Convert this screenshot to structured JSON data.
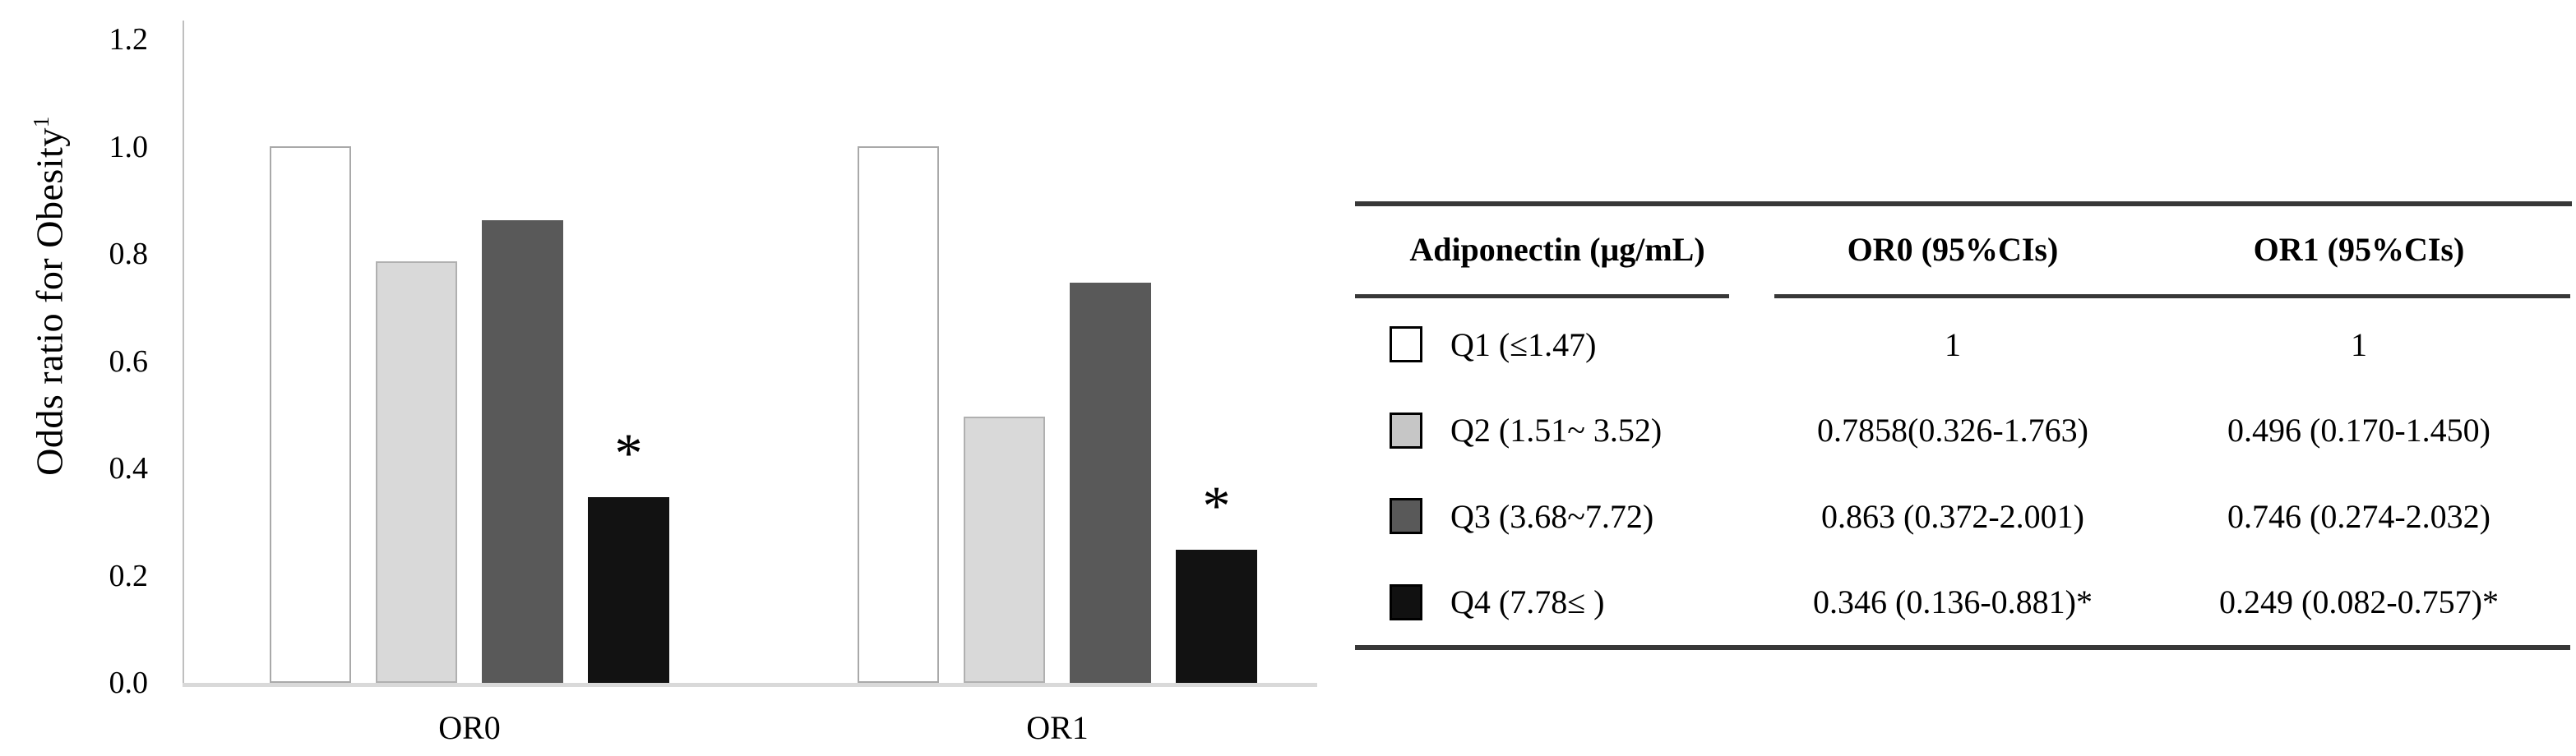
{
  "chart_data": {
    "type": "bar",
    "title": "",
    "categories": [
      "OR0",
      "OR1"
    ],
    "series": [
      {
        "name": "Q1 (≤1.47)",
        "values": [
          1.0,
          1.0
        ],
        "fill": "#ffffff",
        "border": "#a9a9a9",
        "annotation": ""
      },
      {
        "name": "Q2 (1.51~ 3.52)",
        "values": [
          0.7858,
          0.496
        ],
        "fill": "#d9d9d9",
        "border": "#b0b0b0",
        "annotation": ""
      },
      {
        "name": "Q3 (3.68~7.72)",
        "values": [
          0.863,
          0.746
        ],
        "fill": "#595959",
        "border": "#595959",
        "annotation": ""
      },
      {
        "name": "Q4 (7.78≤ )",
        "values": [
          0.346,
          0.249
        ],
        "fill": "#121212",
        "border": "#121212",
        "annotation": "*"
      }
    ],
    "xlabel": "",
    "ylabel": "Odds ratio for Obesity",
    "ylabel_superscript": "1",
    "ylim": [
      0,
      1.2
    ],
    "yticks": [
      "0.0",
      "0.2",
      "0.4",
      "0.6",
      "0.8",
      "1.0",
      "1.2"
    ],
    "grid": false,
    "legend_position": "table-right"
  },
  "table": {
    "col_headers": [
      "Adiponectin (μg/mL)",
      "OR0 (95%CIs)",
      "OR1 (95%CIs)"
    ],
    "rows": [
      {
        "label": "Q1 (≤1.47)",
        "swatch_color": "#ffffff",
        "swatch_name": "white",
        "or0": "1",
        "or1": "1"
      },
      {
        "label": "Q2 (1.51~ 3.52)",
        "swatch_color": "#c6c6c6",
        "swatch_name": "light-gray",
        "or0": "0.7858(0.326-1.763)",
        "or1": "0.496 (0.170-1.450)"
      },
      {
        "label": "Q3 (3.68~7.72)",
        "swatch_color": "#595959",
        "swatch_name": "dark-gray",
        "or0": "0.863 (0.372-2.001)",
        "or1": "0.746 (0.274-2.032)"
      },
      {
        "label": "Q4 (7.78≤ )",
        "swatch_color": "#111111",
        "swatch_name": "black",
        "or0": "0.346 (0.136-0.881)*",
        "or1": "0.249 (0.082-0.757)*"
      }
    ]
  },
  "annotations": {
    "significance_marker": "*"
  },
  "colors": {
    "axis_line": "#bfbfbf",
    "baseline": "#d9d9d9",
    "table_rule": "#383838",
    "text": "#000000",
    "background": "#ffffff"
  }
}
